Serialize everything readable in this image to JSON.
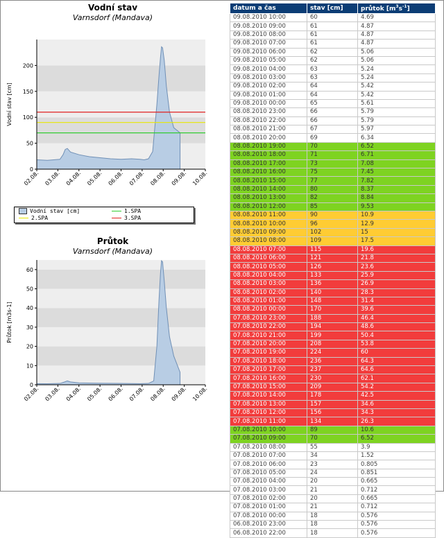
{
  "chart_data": [
    {
      "type": "area",
      "title": "Vodní stav",
      "subtitle": "Varnsdorf (Mandava)",
      "xlabel": "",
      "ylabel": "Vodní stav [cm]",
      "x_ticks": [
        "02.08.",
        "03.08.",
        "04.08.",
        "05.08.",
        "06.08.",
        "07.08.",
        "08.08.",
        "09.08.",
        "10.08."
      ],
      "ylim": [
        0,
        250
      ],
      "y_ticks": [
        0,
        50,
        100,
        150,
        200
      ],
      "xlim": [
        0,
        8
      ],
      "series": [
        {
          "name": "Vodní stav [cm]",
          "x": [
            0,
            0.5,
            1.1,
            1.25,
            1.35,
            1.45,
            1.6,
            2.0,
            2.5,
            3.0,
            3.5,
            4.0,
            4.5,
            4.9,
            5.1,
            5.3,
            5.5,
            5.7,
            5.8,
            5.87,
            5.92,
            5.97,
            6.05,
            6.15,
            6.3,
            6.5,
            6.8
          ],
          "y": [
            18,
            17,
            19,
            28,
            38,
            40,
            33,
            28,
            24,
            22,
            20,
            19,
            20,
            19,
            18,
            20,
            34,
            125,
            180,
            215,
            236,
            234,
            210,
            160,
            110,
            80,
            70
          ]
        }
      ],
      "thresholds": [
        {
          "name": "1.SPA",
          "value": 70,
          "color": "#33cc33"
        },
        {
          "name": "2.SPA",
          "value": 90,
          "color": "#e8e800"
        },
        {
          "name": "3.SPA",
          "value": 110,
          "color": "#e02020"
        }
      ],
      "legend_position": "bottom"
    },
    {
      "type": "area",
      "title": "Průtok",
      "subtitle": "Varnsdorf (Mandava)",
      "xlabel": "",
      "ylabel": "Průtok [m3s-1]",
      "x_ticks": [
        "02.08.",
        "03.08.",
        "04.08.",
        "05.08.",
        "06.08.",
        "07.08.",
        "08.08.",
        "09.08.",
        "10.08."
      ],
      "ylim": [
        0,
        65
      ],
      "y_ticks": [
        0,
        10,
        20,
        30,
        40,
        50,
        60
      ],
      "xlim": [
        0,
        8
      ],
      "series": [
        {
          "name": "Průtok [m3s-1]",
          "x": [
            0,
            0.5,
            1.1,
            1.3,
            1.45,
            1.6,
            2.0,
            3.0,
            4.0,
            4.9,
            5.3,
            5.55,
            5.7,
            5.8,
            5.87,
            5.92,
            5.97,
            6.05,
            6.15,
            6.3,
            6.5,
            6.8
          ],
          "y": [
            0.6,
            0.55,
            0.7,
            1.4,
            2.0,
            1.5,
            1.0,
            0.8,
            0.7,
            0.6,
            0.7,
            2.0,
            20,
            44,
            58,
            64.6,
            64,
            54,
            40,
            25,
            15,
            6.5
          ]
        }
      ]
    }
  ],
  "legend": [
    {
      "label": "Vodní stav [cm]",
      "kind": "box",
      "color": "#b8cde4"
    },
    {
      "label": "1.SPA",
      "kind": "line",
      "color": "#33cc33"
    },
    {
      "label": "2.SPA",
      "kind": "line",
      "color": "#e8e800"
    },
    {
      "label": "3.SPA",
      "kind": "line",
      "color": "#e02020"
    }
  ],
  "table": {
    "headers": {
      "datum": "datum a čas",
      "stav": "stav [cm]",
      "prutok_base": "průtok [m",
      "prutok_sup1": "3",
      "prutok_mid": "s",
      "prutok_sup2": "-1",
      "prutok_end": "]"
    },
    "rows": [
      {
        "datum": "09.08.2010 10:00",
        "stav": "60",
        "prutok": "4.69",
        "level": "normal"
      },
      {
        "datum": "09.08.2010 09:00",
        "stav": "61",
        "prutok": "4.87",
        "level": "normal"
      },
      {
        "datum": "09.08.2010 08:00",
        "stav": "61",
        "prutok": "4.87",
        "level": "normal"
      },
      {
        "datum": "09.08.2010 07:00",
        "stav": "61",
        "prutok": "4.87",
        "level": "normal"
      },
      {
        "datum": "09.08.2010 06:00",
        "stav": "62",
        "prutok": "5.06",
        "level": "normal"
      },
      {
        "datum": "09.08.2010 05:00",
        "stav": "62",
        "prutok": "5.06",
        "level": "normal"
      },
      {
        "datum": "09.08.2010 04:00",
        "stav": "63",
        "prutok": "5.24",
        "level": "normal"
      },
      {
        "datum": "09.08.2010 03:00",
        "stav": "63",
        "prutok": "5.24",
        "level": "normal"
      },
      {
        "datum": "09.08.2010 02:00",
        "stav": "64",
        "prutok": "5.42",
        "level": "normal"
      },
      {
        "datum": "09.08.2010 01:00",
        "stav": "64",
        "prutok": "5.42",
        "level": "normal"
      },
      {
        "datum": "09.08.2010 00:00",
        "stav": "65",
        "prutok": "5.61",
        "level": "normal"
      },
      {
        "datum": "08.08.2010 23:00",
        "stav": "66",
        "prutok": "5.79",
        "level": "normal"
      },
      {
        "datum": "08.08.2010 22:00",
        "stav": "66",
        "prutok": "5.79",
        "level": "normal"
      },
      {
        "datum": "08.08.2010 21:00",
        "stav": "67",
        "prutok": "5.97",
        "level": "normal"
      },
      {
        "datum": "08.08.2010 20:00",
        "stav": "69",
        "prutok": "6.34",
        "level": "normal"
      },
      {
        "datum": "08.08.2010 19:00",
        "stav": "70",
        "prutok": "6.52",
        "level": "spa1"
      },
      {
        "datum": "08.08.2010 18:00",
        "stav": "71",
        "prutok": "6.71",
        "level": "spa1"
      },
      {
        "datum": "08.08.2010 17:00",
        "stav": "73",
        "prutok": "7.08",
        "level": "spa1"
      },
      {
        "datum": "08.08.2010 16:00",
        "stav": "75",
        "prutok": "7.45",
        "level": "spa1"
      },
      {
        "datum": "08.08.2010 15:00",
        "stav": "77",
        "prutok": "7.82",
        "level": "spa1"
      },
      {
        "datum": "08.08.2010 14:00",
        "stav": "80",
        "prutok": "8.37",
        "level": "spa1"
      },
      {
        "datum": "08.08.2010 13:00",
        "stav": "82",
        "prutok": "8.84",
        "level": "spa1"
      },
      {
        "datum": "08.08.2010 12:00",
        "stav": "85",
        "prutok": "9.53",
        "level": "spa1"
      },
      {
        "datum": "08.08.2010 11:00",
        "stav": "90",
        "prutok": "10.9",
        "level": "spa2"
      },
      {
        "datum": "08.08.2010 10:00",
        "stav": "96",
        "prutok": "12.9",
        "level": "spa2"
      },
      {
        "datum": "08.08.2010 09:00",
        "stav": "102",
        "prutok": "15",
        "level": "spa2"
      },
      {
        "datum": "08.08.2010 08:00",
        "stav": "109",
        "prutok": "17.5",
        "level": "spa2"
      },
      {
        "datum": "08.08.2010 07:00",
        "stav": "115",
        "prutok": "19.6",
        "level": "spa3"
      },
      {
        "datum": "08.08.2010 06:00",
        "stav": "121",
        "prutok": "21.8",
        "level": "spa3"
      },
      {
        "datum": "08.08.2010 05:00",
        "stav": "126",
        "prutok": "23.6",
        "level": "spa3"
      },
      {
        "datum": "08.08.2010 04:00",
        "stav": "133",
        "prutok": "25.9",
        "level": "spa3"
      },
      {
        "datum": "08.08.2010 03:00",
        "stav": "136",
        "prutok": "26.9",
        "level": "spa3"
      },
      {
        "datum": "08.08.2010 02:00",
        "stav": "140",
        "prutok": "28.3",
        "level": "spa3"
      },
      {
        "datum": "08.08.2010 01:00",
        "stav": "148",
        "prutok": "31.4",
        "level": "spa3"
      },
      {
        "datum": "08.08.2010 00:00",
        "stav": "170",
        "prutok": "39.6",
        "level": "spa3"
      },
      {
        "datum": "07.08.2010 23:00",
        "stav": "188",
        "prutok": "46.4",
        "level": "spa3"
      },
      {
        "datum": "07.08.2010 22:00",
        "stav": "194",
        "prutok": "48.6",
        "level": "spa3"
      },
      {
        "datum": "07.08.2010 21:00",
        "stav": "199",
        "prutok": "50.4",
        "level": "spa3"
      },
      {
        "datum": "07.08.2010 20:00",
        "stav": "208",
        "prutok": "53.8",
        "level": "spa3"
      },
      {
        "datum": "07.08.2010 19:00",
        "stav": "224",
        "prutok": "60",
        "level": "spa3"
      },
      {
        "datum": "07.08.2010 18:00",
        "stav": "236",
        "prutok": "64.3",
        "level": "spa3"
      },
      {
        "datum": "07.08.2010 17:00",
        "stav": "237",
        "prutok": "64.6",
        "level": "spa3"
      },
      {
        "datum": "07.08.2010 16:00",
        "stav": "230",
        "prutok": "62.1",
        "level": "spa3"
      },
      {
        "datum": "07.08.2010 15:00",
        "stav": "209",
        "prutok": "54.2",
        "level": "spa3"
      },
      {
        "datum": "07.08.2010 14:00",
        "stav": "178",
        "prutok": "42.5",
        "level": "spa3"
      },
      {
        "datum": "07.08.2010 13:00",
        "stav": "157",
        "prutok": "34.6",
        "level": "spa3"
      },
      {
        "datum": "07.08.2010 12:00",
        "stav": "156",
        "prutok": "34.3",
        "level": "spa3"
      },
      {
        "datum": "07.08.2010 11:00",
        "stav": "134",
        "prutok": "26.3",
        "level": "spa3"
      },
      {
        "datum": "07.08.2010 10:00",
        "stav": "89",
        "prutok": "10.6",
        "level": "spa1"
      },
      {
        "datum": "07.08.2010 09:00",
        "stav": "70",
        "prutok": "6.52",
        "level": "spa1"
      },
      {
        "datum": "07.08.2010 08:00",
        "stav": "55",
        "prutok": "3.9",
        "level": "normal"
      },
      {
        "datum": "07.08.2010 07:00",
        "stav": "34",
        "prutok": "1.52",
        "level": "normal"
      },
      {
        "datum": "07.08.2010 06:00",
        "stav": "23",
        "prutok": "0.805",
        "level": "normal"
      },
      {
        "datum": "07.08.2010 05:00",
        "stav": "24",
        "prutok": "0.851",
        "level": "normal"
      },
      {
        "datum": "07.08.2010 04:00",
        "stav": "20",
        "prutok": "0.665",
        "level": "normal"
      },
      {
        "datum": "07.08.2010 03:00",
        "stav": "21",
        "prutok": "0.712",
        "level": "normal"
      },
      {
        "datum": "07.08.2010 02:00",
        "stav": "20",
        "prutok": "0.665",
        "level": "normal"
      },
      {
        "datum": "07.08.2010 01:00",
        "stav": "21",
        "prutok": "0.712",
        "level": "normal"
      },
      {
        "datum": "07.08.2010 00:00",
        "stav": "18",
        "prutok": "0.576",
        "level": "normal"
      },
      {
        "datum": "06.08.2010 23:00",
        "stav": "18",
        "prutok": "0.576",
        "level": "normal"
      },
      {
        "datum": "06.08.2010 22:00",
        "stav": "18",
        "prutok": "0.576",
        "level": "normal"
      }
    ]
  },
  "colors": {
    "fill": "#b8cde4",
    "line": "#6f8fb5",
    "band_dark": "#dcdcdc",
    "band_light": "#eeeeee",
    "header": "#0c3d75"
  }
}
